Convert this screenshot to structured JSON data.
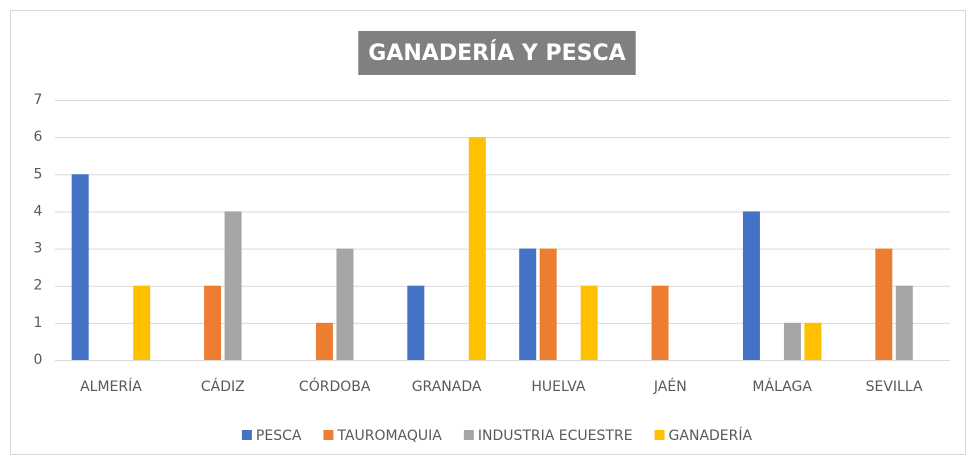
{
  "chart_data": {
    "type": "bar",
    "title": "GANADERÍA Y PESCA",
    "categories": [
      "ALMERÍA",
      "CÁDIZ",
      "CÓRDOBA",
      "GRANADA",
      "HUELVA",
      "JAÉN",
      "MÁLAGA",
      "SEVILLA"
    ],
    "series": [
      {
        "name": "PESCA",
        "color": "#4472c4",
        "values": [
          5,
          0,
          0,
          2,
          3,
          0,
          4,
          0
        ]
      },
      {
        "name": "TAUROMAQUIA",
        "color": "#ed7d31",
        "values": [
          0,
          2,
          1,
          0,
          3,
          2,
          0,
          3
        ]
      },
      {
        "name": "INDUSTRIA ECUESTRE",
        "color": "#a5a5a5",
        "values": [
          0,
          4,
          3,
          0,
          0,
          0,
          1,
          2
        ]
      },
      {
        "name": "GANADERÍA",
        "color": "#ffc000",
        "values": [
          2,
          0,
          0,
          6,
          2,
          0,
          1,
          0
        ]
      }
    ],
    "ylim": [
      0,
      7
    ],
    "yticks": [
      0,
      1,
      2,
      3,
      4,
      5,
      6,
      7
    ],
    "grid": true,
    "legend": "bottom"
  }
}
